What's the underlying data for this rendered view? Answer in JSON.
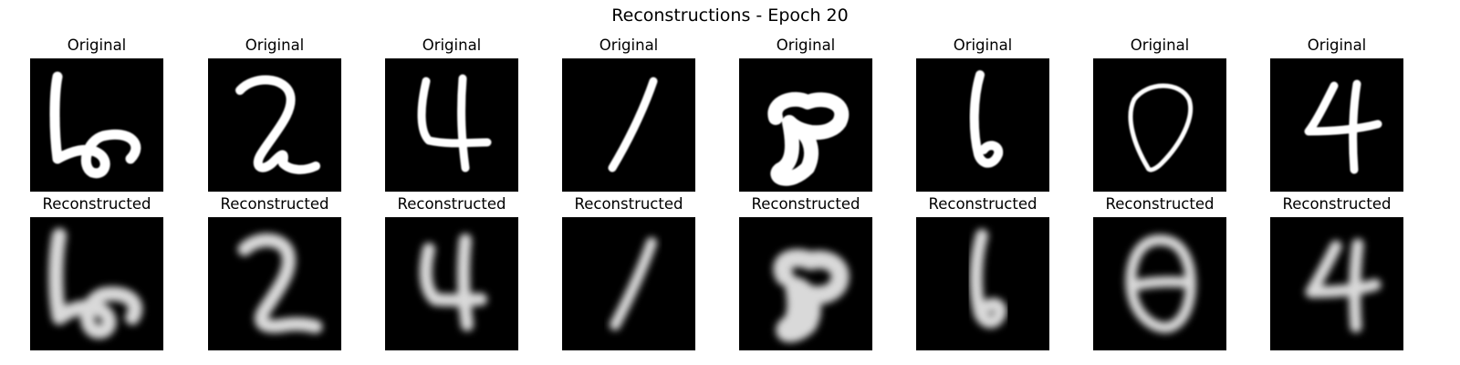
{
  "title": "Reconstructions - Epoch 20",
  "rows": [
    {
      "label": "Original",
      "style": "original"
    },
    {
      "label": "Reconstructed",
      "style": "reconstructed"
    }
  ],
  "digits": [
    "6",
    "2",
    "4",
    "1",
    "8",
    "6",
    "0",
    "4"
  ],
  "colors": {
    "panel_background": "#000000",
    "stroke": "#ffffff"
  }
}
